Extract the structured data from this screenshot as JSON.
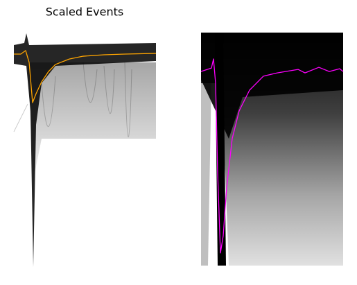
{
  "chart_data": [
    {
      "type": "line",
      "title": "Scaled Events",
      "x": [
        0,
        10,
        17,
        22,
        27,
        32,
        40,
        50,
        60,
        80,
        100,
        130,
        160,
        205
      ],
      "series": [
        {
          "color": "#ffa500",
          "values": [
            90.3,
            90.3,
            91.8,
            86.8,
            69.7,
            73.5,
            78.5,
            82.9,
            85.9,
            88.2,
            89.4,
            90.0,
            90.3,
            90.6
          ]
        }
      ],
      "xlim": [
        0,
        205
      ],
      "ylim": [
        0,
        100
      ]
    },
    {
      "type": "line",
      "x": [
        0,
        15,
        18,
        21,
        24,
        28,
        32,
        37,
        45,
        55,
        70,
        90,
        110,
        140,
        150,
        170,
        185,
        200,
        205
      ],
      "series": [
        {
          "color": "#ff00ff",
          "values": [
            83.3,
            84.8,
            88.7,
            78.3,
            39.6,
            5.4,
            12.8,
            33.6,
            54.5,
            66.4,
            75.3,
            81.3,
            82.7,
            84.2,
            82.7,
            85.1,
            83.3,
            84.5,
            83.3
          ]
        }
      ],
      "xlim": [
        0,
        205
      ],
      "ylim": [
        0,
        100
      ]
    }
  ]
}
